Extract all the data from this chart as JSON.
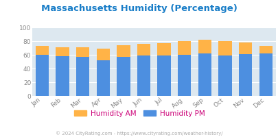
{
  "title": "Massachusetts Humidity (Percentage)",
  "months": [
    "Jan",
    "Feb",
    "Mar",
    "Apr",
    "May",
    "Jun",
    "Jul",
    "Aug",
    "Sep",
    "Oct",
    "Nov",
    "Dec"
  ],
  "humidity_pm": [
    60,
    58,
    57,
    52,
    57,
    59,
    59,
    60,
    62,
    59,
    61,
    62
  ],
  "humidity_am": [
    13,
    13,
    14,
    17,
    17,
    17,
    18,
    20,
    20,
    21,
    17,
    11
  ],
  "color_pm": "#4d8fe0",
  "color_am": "#ffb347",
  "bg_color": "#dde8f0",
  "ylim": [
    0,
    100
  ],
  "yticks": [
    0,
    20,
    40,
    60,
    80,
    100
  ],
  "title_color": "#1a7ec8",
  "footer_text": "© 2024 CityRating.com - https://www.cityrating.com/weather-history/",
  "footer_color": "#aaaaaa",
  "legend_am": "Humidity AM",
  "legend_pm": "Humidity PM",
  "legend_text_color": "#cc0077",
  "tick_color": "#888888",
  "grid_color": "#ffffff",
  "bar_width": 0.65
}
